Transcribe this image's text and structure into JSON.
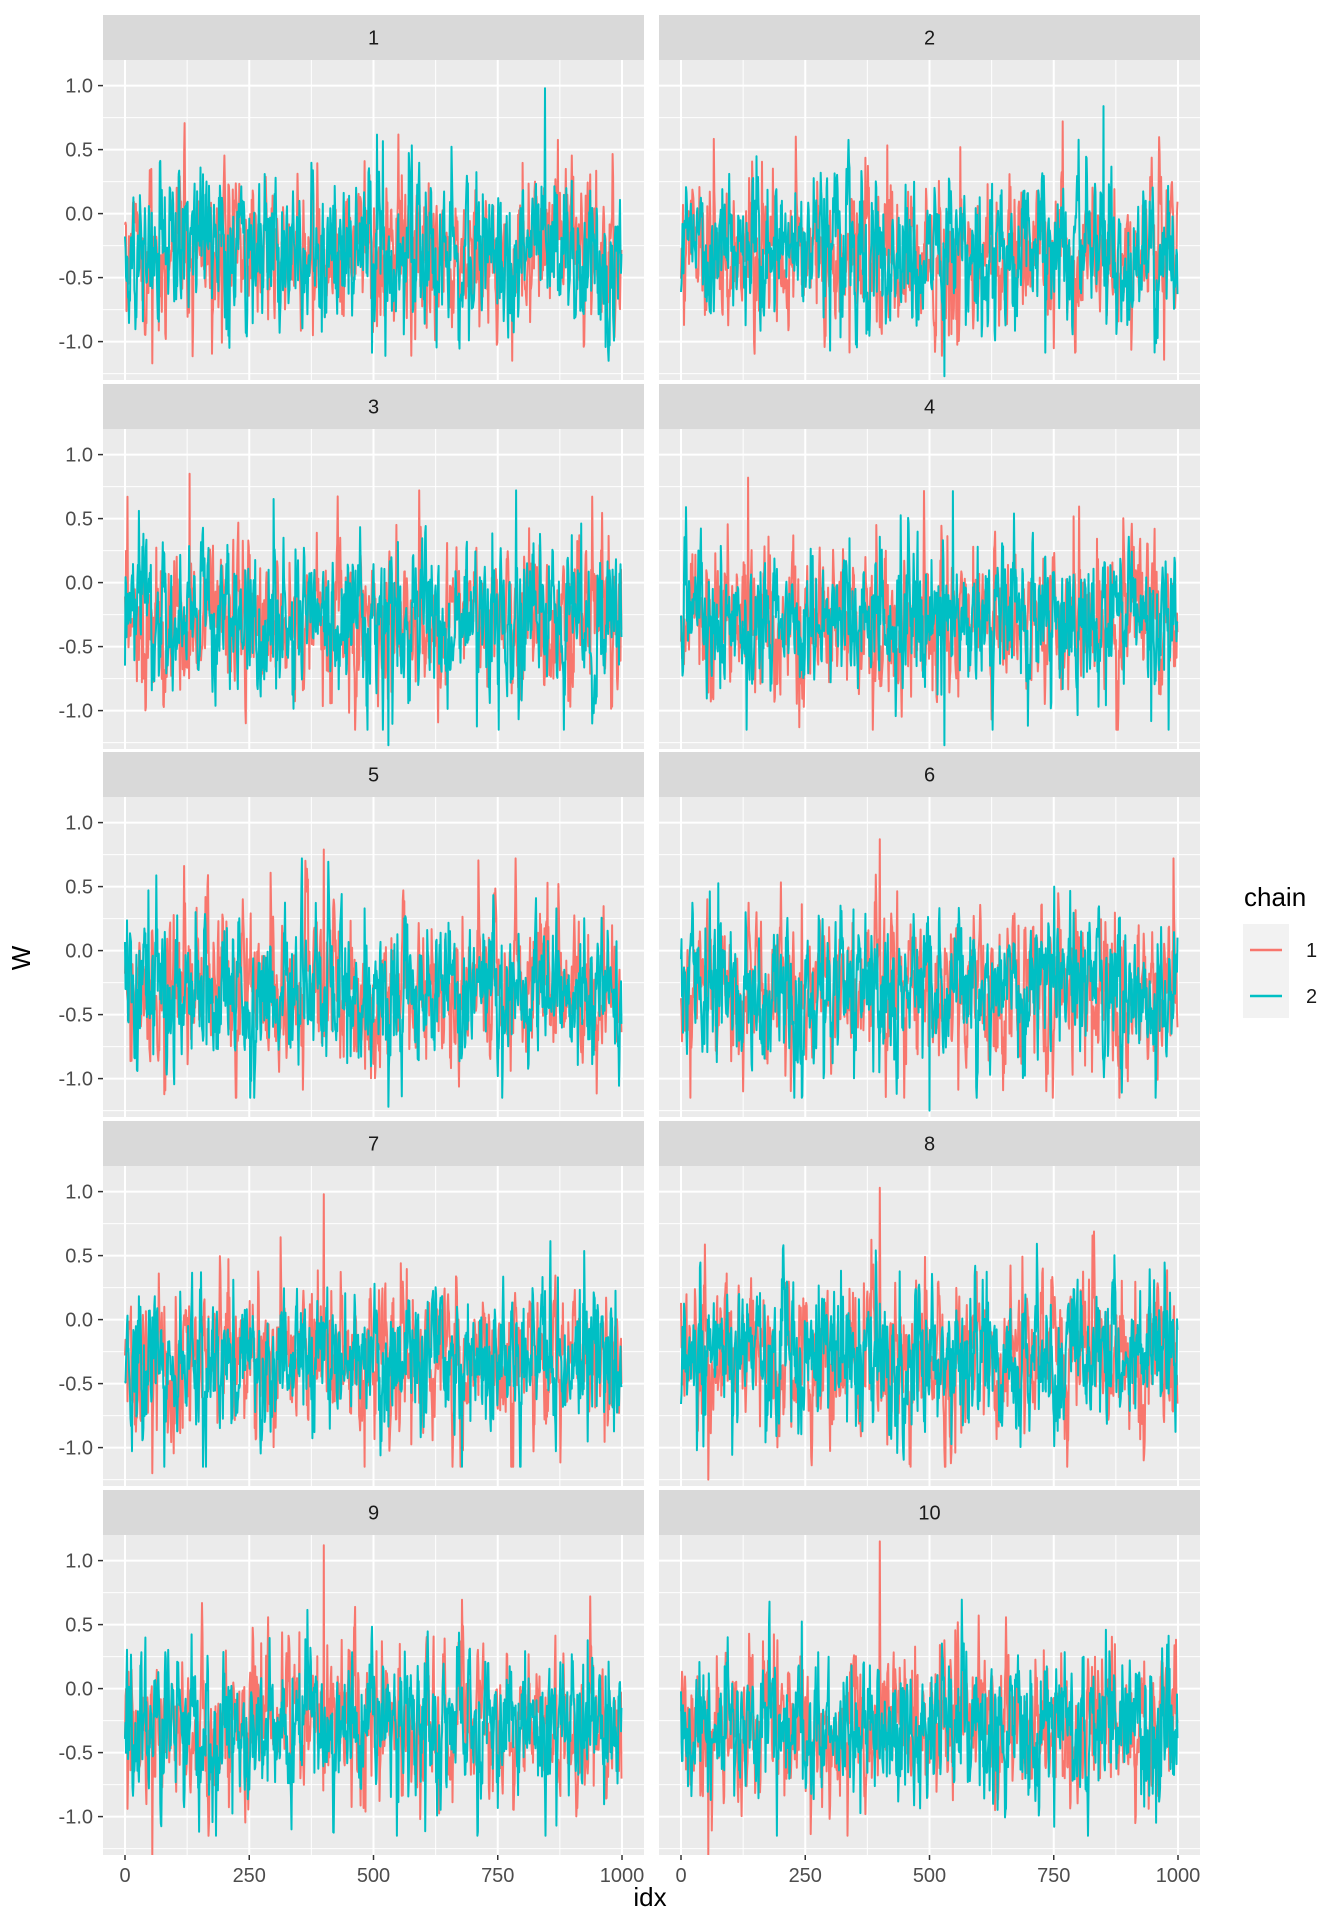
{
  "chart_data": {
    "type": "line",
    "layout": "facet_wrap",
    "facet_columns": 2,
    "xlabel": "idx",
    "ylabel": "W",
    "xlim": [
      0,
      1000
    ],
    "ylim": [
      -1.3,
      1.2
    ],
    "x_ticks": [
      0,
      250,
      500,
      750,
      1000
    ],
    "x_tick_labels": [
      "0",
      "250",
      "500",
      "750",
      "1000"
    ],
    "y_ticks": [
      1.0,
      0.5,
      0.0,
      -0.5,
      -1.0
    ],
    "y_tick_labels": [
      "1.0",
      "0.5",
      "0.0",
      "-0.5",
      "-1.0"
    ],
    "grid": true,
    "legend": {
      "title": "chain",
      "position": "right",
      "entries": [
        {
          "label": "1",
          "color": "#F8766D"
        },
        {
          "label": "2",
          "color": "#00BFC4"
        }
      ]
    },
    "series_summary": {
      "n_points": 1000,
      "center": -0.3,
      "typical_range": [
        -1.2,
        0.8
      ]
    },
    "panels": [
      {
        "label": "1",
        "extremes": [
          {
            "chain": "2",
            "x": 845,
            "y": 0.98
          },
          {
            "chain": "1",
            "x": 55,
            "y": -1.17
          }
        ]
      },
      {
        "label": "2",
        "extremes": [
          {
            "chain": "2",
            "x": 850,
            "y": 0.84
          },
          {
            "chain": "2",
            "x": 530,
            "y": -1.27
          }
        ]
      },
      {
        "label": "3",
        "extremes": [
          {
            "chain": "1",
            "x": 130,
            "y": 0.85
          },
          {
            "chain": "2",
            "x": 530,
            "y": -1.27
          }
        ]
      },
      {
        "label": "4",
        "extremes": [
          {
            "chain": "1",
            "x": 135,
            "y": 0.82
          },
          {
            "chain": "2",
            "x": 530,
            "y": -1.27
          }
        ]
      },
      {
        "label": "5",
        "extremes": [
          {
            "chain": "1",
            "x": 400,
            "y": 0.79
          },
          {
            "chain": "2",
            "x": 530,
            "y": -1.22
          }
        ]
      },
      {
        "label": "6",
        "extremes": [
          {
            "chain": "1",
            "x": 400,
            "y": 0.87
          },
          {
            "chain": "2",
            "x": 500,
            "y": -1.25
          }
        ]
      },
      {
        "label": "7",
        "extremes": [
          {
            "chain": "1",
            "x": 400,
            "y": 0.98
          },
          {
            "chain": "1",
            "x": 55,
            "y": -1.2
          }
        ]
      },
      {
        "label": "8",
        "extremes": [
          {
            "chain": "1",
            "x": 400,
            "y": 1.03
          },
          {
            "chain": "1",
            "x": 55,
            "y": -1.25
          }
        ]
      },
      {
        "label": "9",
        "extremes": [
          {
            "chain": "1",
            "x": 400,
            "y": 1.12
          },
          {
            "chain": "1",
            "x": 55,
            "y": -1.3
          }
        ]
      },
      {
        "label": "10",
        "extremes": [
          {
            "chain": "1",
            "x": 400,
            "y": 1.15
          },
          {
            "chain": "1",
            "x": 55,
            "y": -1.3
          }
        ]
      }
    ]
  },
  "colors": {
    "panel_background": "#EBEBEB",
    "strip_background": "#D9D9D9",
    "grid": "#FFFFFF"
  }
}
